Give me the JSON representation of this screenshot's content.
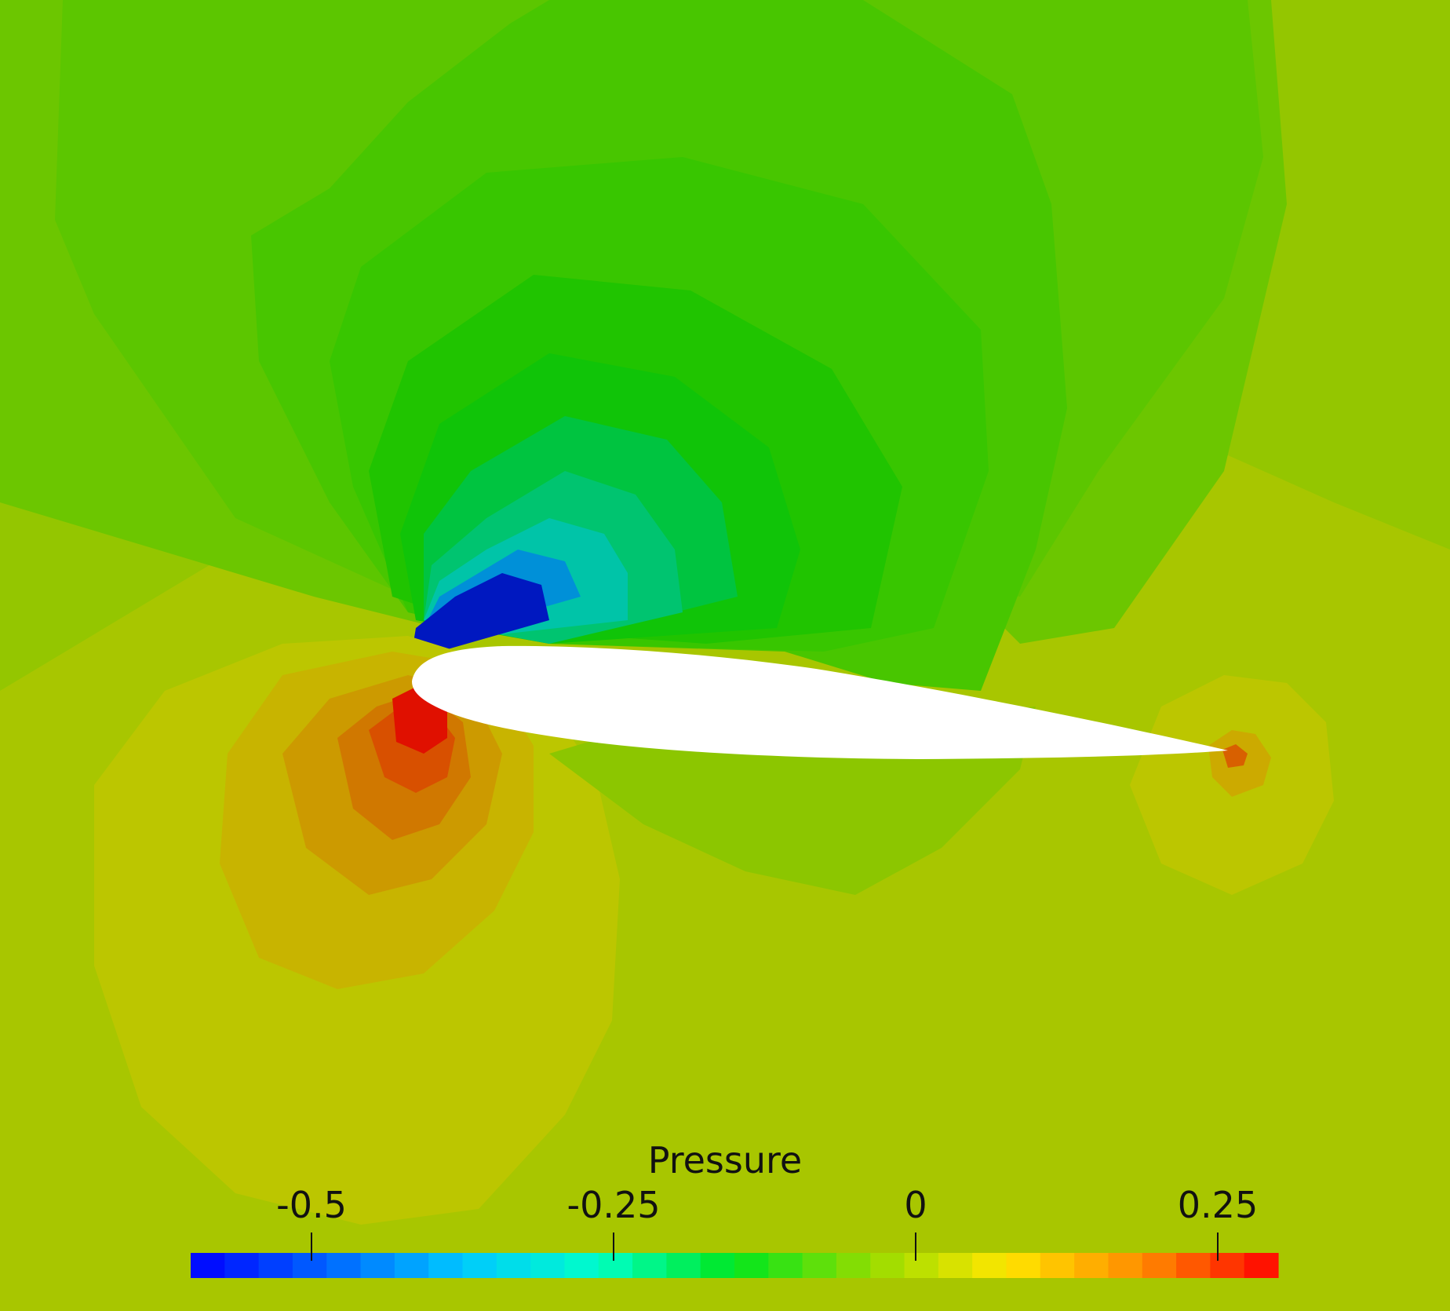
{
  "legend": {
    "title": "Pressure",
    "ticks": [
      {
        "value": -0.5,
        "label": "-0.5"
      },
      {
        "value": -0.25,
        "label": "-0.25"
      },
      {
        "value": 0,
        "label": "0"
      },
      {
        "value": 0.25,
        "label": "0.25"
      }
    ],
    "range": [
      -0.6,
      0.3
    ],
    "bands": 32
  },
  "colors": {
    "far_field": "#a8c600",
    "upper_field": "#5cc600",
    "suction_peak": "#0018c0",
    "stagnation_peak": "#e01000",
    "airfoil": "#ffffff"
  }
}
